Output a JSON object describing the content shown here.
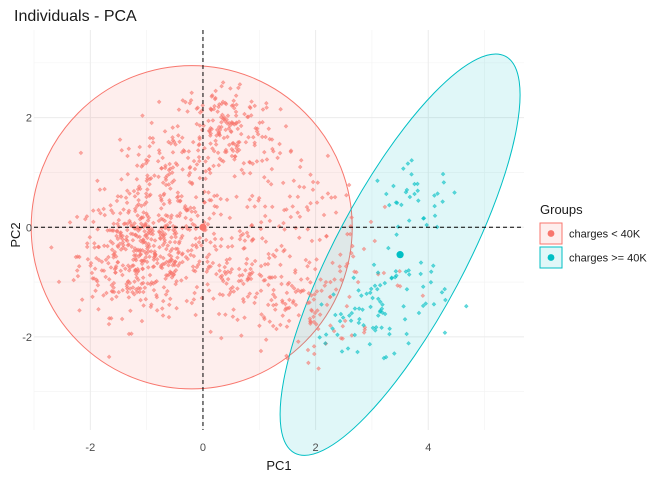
{
  "chart_data": {
    "type": "scatter",
    "title": "Individuals - PCA",
    "xlabel": "PC1",
    "ylabel": "PC2",
    "xlim": [
      -3.0,
      5.7
    ],
    "ylim": [
      -3.7,
      3.6
    ],
    "x_ticks": [
      -2,
      0,
      2,
      4
    ],
    "y_ticks": [
      -2,
      0,
      2
    ],
    "grid": true,
    "reference_lines": {
      "x": 0,
      "y": 0,
      "style": "dashed"
    },
    "legend": {
      "title": "Groups",
      "position": "right",
      "entries": [
        "charges < 40K",
        "charges >= 40K"
      ]
    },
    "colors": {
      "group1": "#F8766D",
      "group2": "#00BFC4"
    },
    "series": [
      {
        "name": "charges < 40K",
        "color": "#F8766D",
        "centroid": [
          0.0,
          0.0
        ],
        "ellipse": {
          "center": [
            -0.2,
            0.0
          ],
          "semi_axes": [
            2.85,
            2.95
          ],
          "angle_deg": 0
        },
        "clusters": [
          {
            "center": [
              -1.1,
              -0.5
            ],
            "spread": [
              0.55,
              0.55
            ],
            "n": 420
          },
          {
            "center": [
              -0.6,
              0.8
            ],
            "spread": [
              0.55,
              0.55
            ],
            "n": 160
          },
          {
            "center": [
              0.4,
              1.8
            ],
            "spread": [
              0.45,
              0.45
            ],
            "n": 170
          },
          {
            "center": [
              0.6,
              -0.8
            ],
            "spread": [
              0.6,
              0.55
            ],
            "n": 160
          },
          {
            "center": [
              1.8,
              -1.4
            ],
            "spread": [
              0.5,
              0.45
            ],
            "n": 90
          },
          {
            "center": [
              1.4,
              0.6
            ],
            "spread": [
              0.7,
              0.5
            ],
            "n": 60
          },
          {
            "center": [
              2.6,
              -0.5
            ],
            "spread": [
              0.5,
              0.7
            ],
            "n": 40
          }
        ]
      },
      {
        "name": "charges >= 40K",
        "color": "#00BFC4",
        "centroid": [
          3.5,
          -0.5
        ],
        "ellipse": {
          "center": [
            3.5,
            -0.5
          ],
          "semi_axes": [
            1.15,
            4.1
          ],
          "angle_deg": 28
        },
        "clusters": [
          {
            "center": [
              3.8,
              0.5
            ],
            "spread": [
              0.4,
              0.3
            ],
            "n": 35
          },
          {
            "center": [
              3.3,
              -1.3
            ],
            "spread": [
              0.5,
              0.45
            ],
            "n": 60
          },
          {
            "center": [
              2.7,
              -1.9
            ],
            "spread": [
              0.35,
              0.3
            ],
            "n": 25
          }
        ]
      }
    ]
  }
}
